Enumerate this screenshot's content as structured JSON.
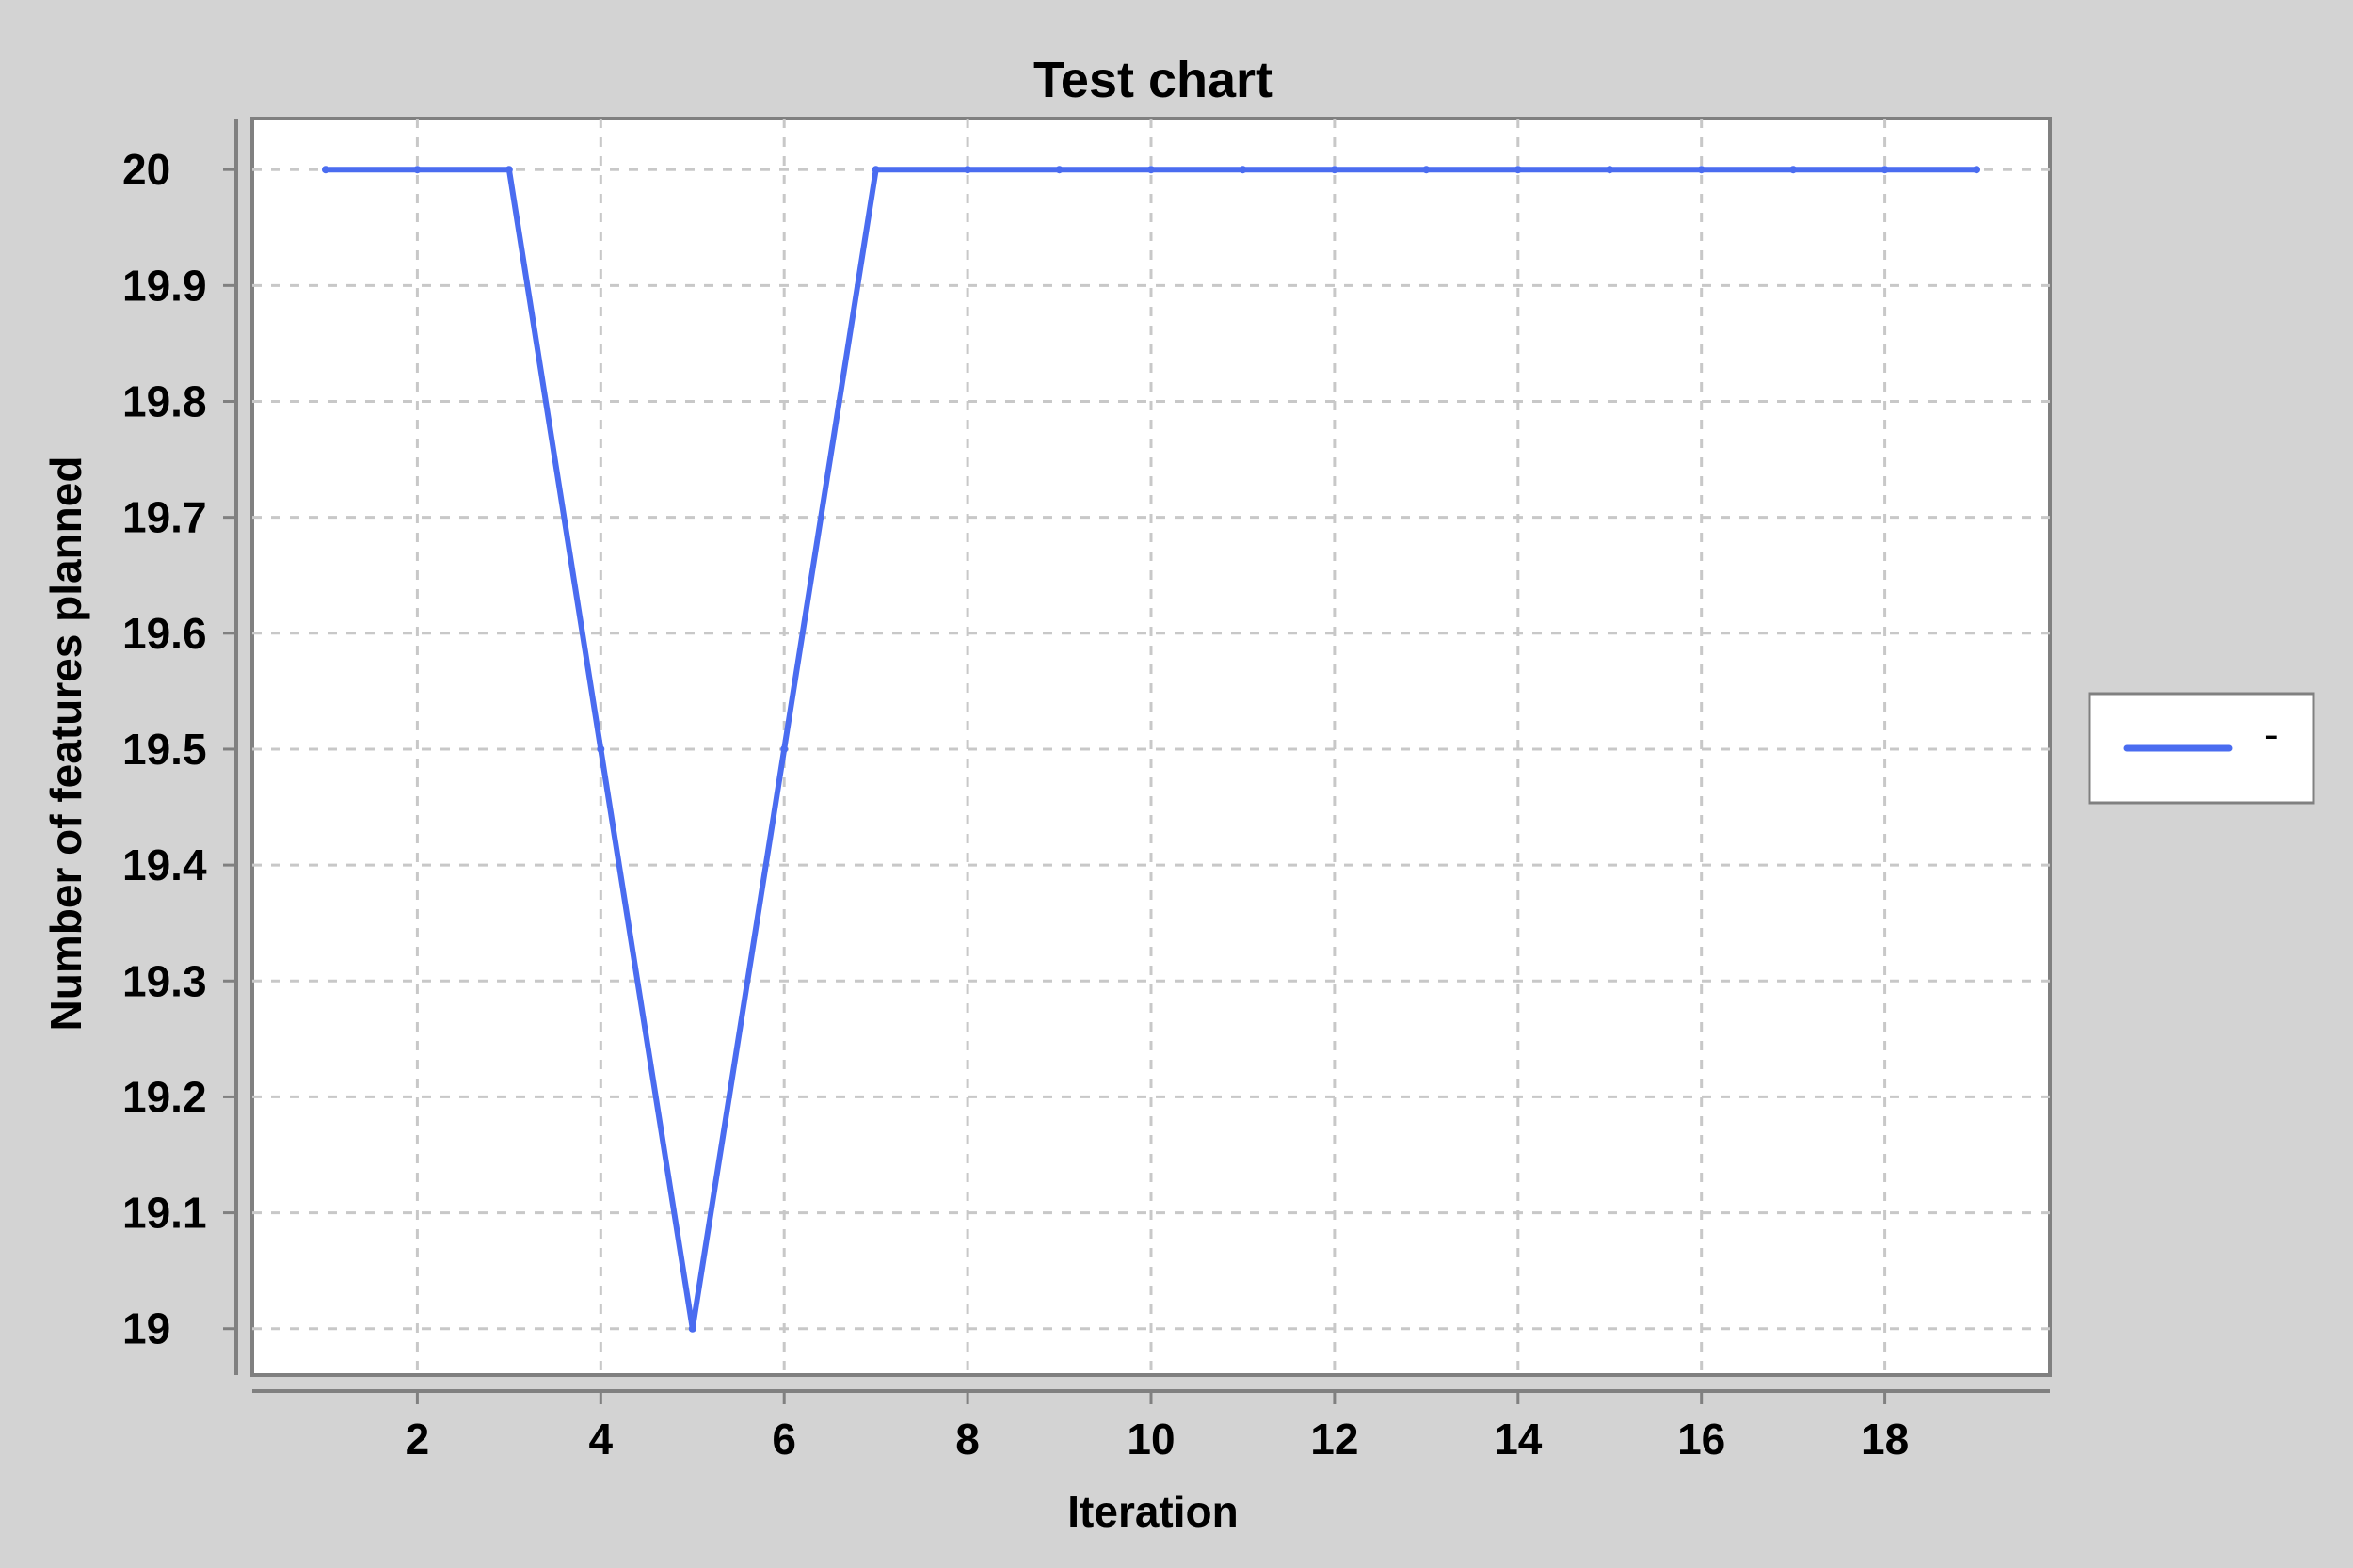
{
  "chart_data": {
    "type": "line",
    "title": "Test chart",
    "xlabel": "Iteration",
    "ylabel": "Number of features planned",
    "xlim": [
      0.2,
      19.8
    ],
    "ylim": [
      18.96,
      20.044
    ],
    "x_ticks": [
      2,
      4,
      6,
      8,
      10,
      12,
      14,
      16,
      18
    ],
    "y_ticks": [
      19,
      19.1,
      19.2,
      19.3,
      19.4,
      19.5,
      19.6,
      19.7,
      19.8,
      19.9,
      20
    ],
    "y_tick_labels": [
      "19",
      "19.1",
      "19.2",
      "19.3",
      "19.4",
      "19.5",
      "19.6",
      "19.7",
      "19.8",
      "19.9",
      "20"
    ],
    "x_tick_labels": [
      "2",
      "4",
      "6",
      "8",
      "10",
      "12",
      "14",
      "16",
      "18"
    ],
    "grid": true,
    "legend_position": "right",
    "series": [
      {
        "name": "-",
        "color": "#4a6cf0",
        "x": [
          1,
          2,
          3,
          4,
          5,
          6,
          7,
          8,
          9,
          10,
          11,
          12,
          13,
          14,
          15,
          16,
          17,
          18,
          19
        ],
        "y": [
          20,
          20,
          20,
          19.5,
          19,
          19.5,
          20,
          20,
          20,
          20,
          20,
          20,
          20,
          20,
          20,
          20,
          20,
          20,
          20
        ]
      }
    ]
  },
  "colors": {
    "background": "#d3d3d3",
    "plot_background": "#ffffff",
    "frame": "#808080",
    "grid": "#c8c8c8",
    "series_line": "#4a6cf0"
  }
}
